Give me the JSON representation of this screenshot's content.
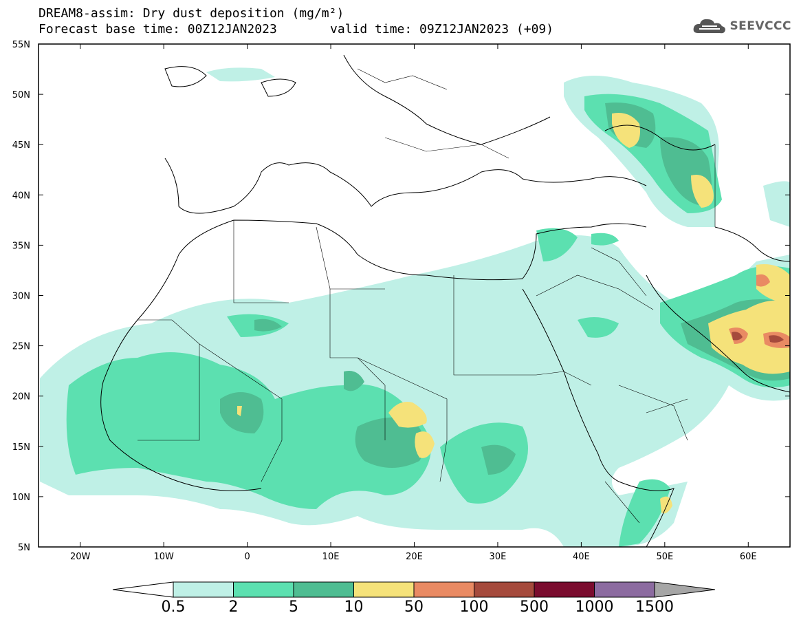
{
  "title_line1": "DREAM8-assim: Dry dust deposition (mg/m²)",
  "title_line2": "Forecast base time: 00Z12JAN2023",
  "valid_time": "valid time: 09Z12JAN2023 (+09)",
  "logo_text": "SEEVCCC",
  "lat_ticks": [
    "55N",
    "50N",
    "45N",
    "40N",
    "35N",
    "30N",
    "25N",
    "20N",
    "15N",
    "10N",
    "5N"
  ],
  "lon_ticks": [
    "20W",
    "10W",
    "0",
    "10E",
    "20E",
    "30E",
    "40E",
    "50E",
    "60E"
  ],
  "colorbar": {
    "colors": [
      "#ffffff",
      "#bff0e6",
      "#5ce0b0",
      "#4fbd92",
      "#f5e27a",
      "#e98a63",
      "#a54a3c",
      "#7a0c2e",
      "#8c6ba0",
      "#a6a6a6"
    ],
    "labels": [
      "0.5",
      "2",
      "5",
      "10",
      "50",
      "100",
      "500",
      "1000",
      "1500"
    ]
  }
}
